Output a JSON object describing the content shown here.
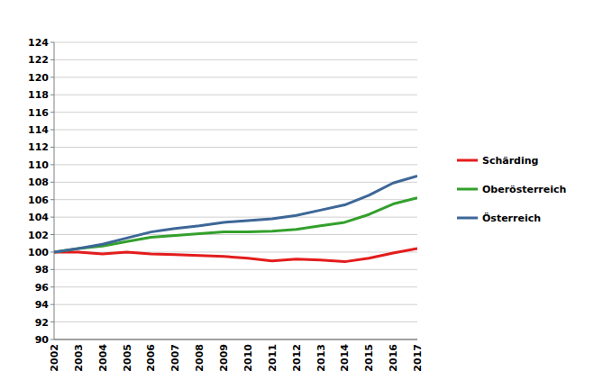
{
  "chart_data": {
    "type": "line",
    "categories": [
      "2002",
      "2003",
      "2004",
      "2005",
      "2006",
      "2007",
      "2008",
      "2009",
      "2010",
      "2011",
      "2012",
      "2013",
      "2014",
      "2015",
      "2016",
      "2017"
    ],
    "series": [
      {
        "name": "Schärding",
        "color": "#e41c1c",
        "values": [
          100,
          100.0,
          99.8,
          100.0,
          99.8,
          99.7,
          99.6,
          99.5,
          99.3,
          99.0,
          99.2,
          99.1,
          98.9,
          99.3,
          99.9,
          100.4
        ]
      },
      {
        "name": "Oberösterreich",
        "color": "#33a02c",
        "values": [
          100,
          100.4,
          100.7,
          101.2,
          101.7,
          101.9,
          102.1,
          102.3,
          102.3,
          102.4,
          102.6,
          103.0,
          103.4,
          104.3,
          105.5,
          106.2
        ]
      },
      {
        "name": "Österreich",
        "color": "#3d6797",
        "values": [
          100,
          100.4,
          100.9,
          101.6,
          102.3,
          102.7,
          103.0,
          103.4,
          103.6,
          103.8,
          104.2,
          104.8,
          105.4,
          106.5,
          107.9,
          108.7
        ]
      }
    ],
    "ylim": [
      90,
      124
    ],
    "yticks": [
      90,
      92,
      94,
      96,
      98,
      100,
      102,
      104,
      106,
      108,
      110,
      112,
      114,
      116,
      118,
      120,
      122,
      124
    ],
    "grid": true,
    "legend": "right"
  }
}
